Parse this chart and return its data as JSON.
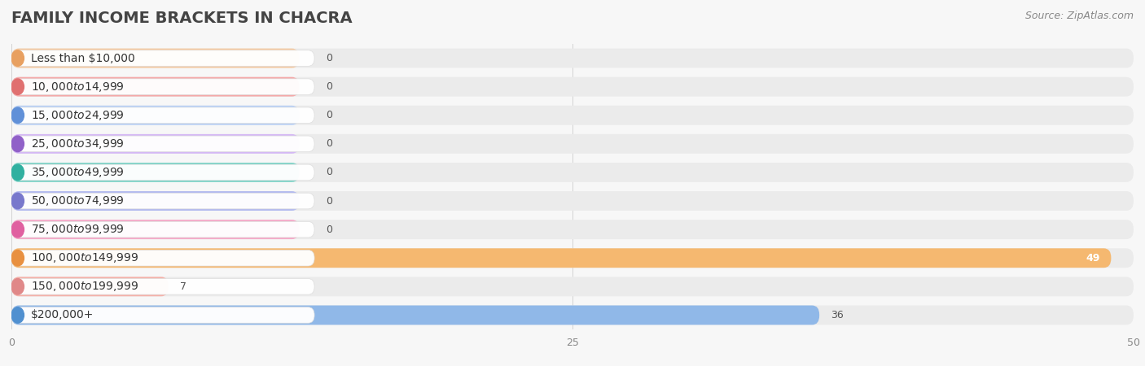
{
  "title": "FAMILY INCOME BRACKETS IN CHACRA",
  "source_text": "Source: ZipAtlas.com",
  "categories": [
    "Less than $10,000",
    "$10,000 to $14,999",
    "$15,000 to $24,999",
    "$25,000 to $34,999",
    "$35,000 to $49,999",
    "$50,000 to $74,999",
    "$75,000 to $99,999",
    "$100,000 to $149,999",
    "$150,000 to $199,999",
    "$200,000+"
  ],
  "values": [
    0,
    0,
    0,
    0,
    0,
    0,
    0,
    49,
    7,
    36
  ],
  "bar_colors": [
    "#f5c9a0",
    "#f5a8a8",
    "#b8d0f5",
    "#d4b8f5",
    "#80d4c8",
    "#b0b8f0",
    "#f5a8c8",
    "#f5b870",
    "#f5b0a8",
    "#90b8e8"
  ],
  "dot_colors": [
    "#e8a060",
    "#e07070",
    "#6090d8",
    "#9060c8",
    "#30b0a0",
    "#7878cc",
    "#e060a0",
    "#e89040",
    "#e08888",
    "#5090d0"
  ],
  "row_bg_color": "#ebebeb",
  "row_bg_color_alt": "#f0f0f0",
  "xlim_max": 50,
  "xticks": [
    0,
    25,
    50
  ],
  "title_fontsize": 14,
  "label_fontsize": 10,
  "value_label_fontsize": 9,
  "source_fontsize": 9,
  "background_color": "#f7f7f7"
}
